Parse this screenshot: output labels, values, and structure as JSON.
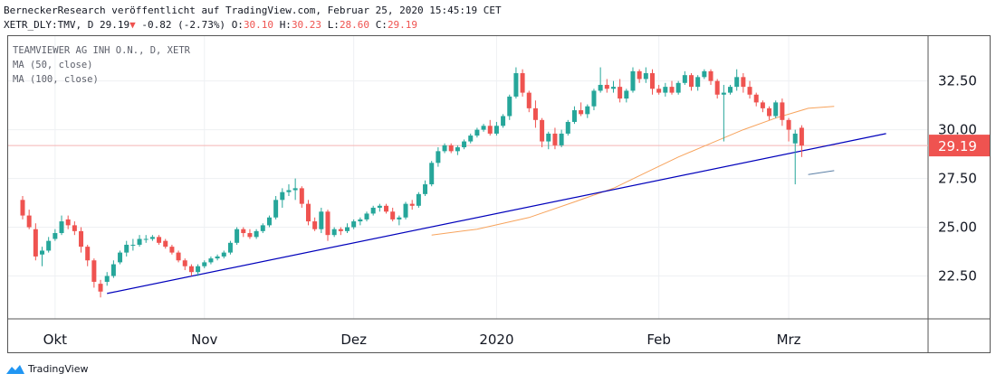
{
  "header": {
    "line1": "BerneckerResearch veröffentlicht auf TradingView.com, Februar 25, 2020 15:45:19 CET",
    "symbol": "XETR_DLY:TMV, D",
    "last": "29.19",
    "change": "-0.82 (-2.73%)",
    "o_label": "O:",
    "o": "30.10",
    "h_label": "H:",
    "h": "30.23",
    "l_label": "L:",
    "l": "28.60",
    "c_label": "C:",
    "c": "29.19"
  },
  "legend": {
    "title": "TEAMVIEWER AG INH O.N., D, XETR",
    "ma50": "MA (50, close)",
    "ma100": "MA (100, close)"
  },
  "brand": {
    "name": "TradingView"
  },
  "colors": {
    "up": "#26a69a",
    "down": "#ef5350",
    "ma50": "#f7a35c",
    "ma100": "#5b7fa6",
    "trendline": "#0000bb",
    "price_line": "#f5b5b3"
  },
  "chart_data": {
    "type": "candlestick",
    "ylim": [
      20.3,
      34.8
    ],
    "y_ticks": [
      22.5,
      25.0,
      27.5,
      30.0,
      32.5
    ],
    "y_tick_labels": [
      "22.50",
      "25.00",
      "27.50",
      "30.00",
      "32.50"
    ],
    "x_ticks": [
      {
        "i": 5,
        "label": "Okt"
      },
      {
        "i": 28,
        "label": "Nov"
      },
      {
        "i": 51,
        "label": "Dez"
      },
      {
        "i": 73,
        "label": "2020"
      },
      {
        "i": 98,
        "label": "Feb"
      },
      {
        "i": 118,
        "label": "Mrz"
      }
    ],
    "last_price_label": "29.19",
    "last_price": 29.19,
    "candles": [
      [
        26.4,
        26.6,
        25.4,
        25.6
      ],
      [
        25.6,
        25.9,
        24.9,
        25.0
      ],
      [
        24.9,
        25.2,
        23.3,
        23.5
      ],
      [
        23.6,
        24.0,
        23.0,
        23.8
      ],
      [
        23.8,
        24.5,
        23.7,
        24.3
      ],
      [
        24.4,
        24.9,
        24.3,
        24.7
      ],
      [
        24.7,
        25.6,
        24.6,
        25.3
      ],
      [
        25.4,
        25.6,
        24.9,
        25.1
      ],
      [
        25.1,
        25.3,
        24.6,
        24.8
      ],
      [
        24.8,
        25.0,
        23.7,
        24.0
      ],
      [
        24.0,
        24.1,
        23.0,
        23.3
      ],
      [
        23.3,
        23.4,
        21.9,
        22.2
      ],
      [
        22.1,
        22.3,
        21.4,
        21.7
      ],
      [
        22.2,
        22.7,
        22.0,
        22.5
      ],
      [
        22.5,
        23.3,
        22.4,
        23.1
      ],
      [
        23.2,
        23.8,
        23.1,
        23.7
      ],
      [
        23.7,
        24.3,
        23.5,
        24.1
      ],
      [
        24.1,
        24.4,
        23.8,
        24.1
      ],
      [
        24.1,
        24.6,
        24.0,
        24.4
      ],
      [
        24.4,
        24.6,
        24.2,
        24.4
      ],
      [
        24.4,
        24.6,
        24.3,
        24.5
      ],
      [
        24.5,
        24.6,
        24.1,
        24.2
      ],
      [
        24.3,
        24.4,
        23.9,
        24.0
      ],
      [
        24.0,
        24.1,
        23.6,
        23.7
      ],
      [
        23.7,
        23.8,
        23.2,
        23.3
      ],
      [
        23.3,
        23.4,
        22.8,
        23.0
      ],
      [
        23.0,
        23.1,
        22.5,
        22.7
      ],
      [
        22.7,
        23.1,
        22.5,
        23.0
      ],
      [
        23.0,
        23.3,
        22.9,
        23.2
      ],
      [
        23.2,
        23.5,
        23.1,
        23.4
      ],
      [
        23.4,
        23.6,
        23.3,
        23.5
      ],
      [
        23.5,
        23.8,
        23.4,
        23.7
      ],
      [
        23.7,
        24.3,
        23.6,
        24.2
      ],
      [
        24.2,
        25.0,
        24.1,
        24.9
      ],
      [
        24.9,
        25.0,
        24.5,
        24.7
      ],
      [
        24.7,
        24.9,
        24.4,
        24.5
      ],
      [
        24.5,
        24.9,
        24.4,
        24.8
      ],
      [
        24.8,
        25.2,
        24.7,
        25.1
      ],
      [
        25.1,
        25.6,
        25.0,
        25.5
      ],
      [
        25.5,
        26.6,
        25.4,
        26.4
      ],
      [
        26.4,
        27.0,
        26.0,
        26.8
      ],
      [
        26.8,
        27.2,
        26.6,
        26.9
      ],
      [
        26.9,
        27.5,
        26.4,
        27.0
      ],
      [
        27.0,
        27.1,
        26.0,
        26.2
      ],
      [
        26.2,
        26.4,
        25.1,
        25.3
      ],
      [
        25.3,
        25.5,
        24.8,
        24.9
      ],
      [
        24.9,
        26.0,
        24.7,
        25.8
      ],
      [
        25.8,
        25.9,
        24.3,
        24.6
      ],
      [
        24.6,
        25.0,
        24.5,
        24.9
      ],
      [
        24.9,
        25.0,
        24.6,
        24.8
      ],
      [
        24.8,
        25.2,
        24.7,
        25.0
      ],
      [
        25.0,
        25.4,
        24.9,
        25.3
      ],
      [
        25.3,
        25.5,
        25.1,
        25.4
      ],
      [
        25.4,
        25.8,
        25.3,
        25.7
      ],
      [
        25.7,
        26.1,
        25.6,
        26.0
      ],
      [
        26.0,
        26.2,
        25.8,
        26.1
      ],
      [
        26.1,
        26.2,
        25.7,
        25.8
      ],
      [
        25.8,
        26.0,
        25.3,
        25.4
      ],
      [
        25.4,
        25.6,
        25.1,
        25.5
      ],
      [
        25.5,
        26.3,
        25.4,
        26.2
      ],
      [
        26.2,
        26.4,
        25.9,
        26.1
      ],
      [
        26.1,
        26.8,
        26.0,
        26.7
      ],
      [
        26.7,
        27.4,
        26.6,
        27.2
      ],
      [
        27.2,
        28.4,
        27.1,
        28.3
      ],
      [
        28.3,
        29.1,
        28.1,
        28.9
      ],
      [
        28.9,
        29.3,
        28.8,
        29.2
      ],
      [
        29.2,
        29.3,
        28.8,
        28.9
      ],
      [
        28.9,
        29.2,
        28.7,
        29.1
      ],
      [
        29.1,
        29.5,
        29.0,
        29.4
      ],
      [
        29.4,
        29.8,
        29.3,
        29.7
      ],
      [
        29.7,
        30.1,
        29.6,
        30.0
      ],
      [
        30.0,
        30.3,
        29.9,
        30.2
      ],
      [
        30.2,
        30.5,
        29.7,
        29.8
      ],
      [
        29.8,
        30.4,
        29.7,
        30.2
      ],
      [
        30.2,
        30.8,
        30.1,
        30.7
      ],
      [
        30.7,
        31.8,
        30.5,
        31.7
      ],
      [
        31.7,
        33.2,
        31.6,
        32.9
      ],
      [
        32.9,
        33.1,
        31.7,
        31.9
      ],
      [
        31.9,
        32.0,
        30.9,
        31.1
      ],
      [
        31.1,
        31.5,
        30.1,
        30.5
      ],
      [
        30.5,
        30.6,
        29.1,
        29.4
      ],
      [
        29.4,
        29.9,
        29.0,
        29.8
      ],
      [
        29.8,
        30.1,
        29.0,
        29.2
      ],
      [
        29.2,
        30.0,
        29.1,
        29.8
      ],
      [
        29.8,
        30.5,
        29.7,
        30.4
      ],
      [
        30.4,
        31.2,
        30.3,
        31.0
      ],
      [
        31.0,
        31.4,
        30.7,
        30.8
      ],
      [
        30.8,
        31.3,
        30.6,
        31.2
      ],
      [
        31.2,
        32.1,
        31.0,
        32.0
      ],
      [
        32.0,
        33.2,
        31.9,
        32.3
      ],
      [
        32.3,
        32.6,
        31.9,
        32.1
      ],
      [
        32.1,
        32.5,
        31.9,
        32.2
      ],
      [
        32.2,
        32.6,
        31.4,
        31.6
      ],
      [
        31.6,
        32.1,
        31.4,
        32.0
      ],
      [
        32.0,
        33.2,
        31.9,
        33.0
      ],
      [
        33.0,
        33.1,
        32.4,
        32.6
      ],
      [
        32.6,
        33.2,
        32.4,
        32.9
      ],
      [
        32.9,
        33.1,
        31.8,
        32.1
      ],
      [
        32.1,
        32.3,
        31.8,
        31.9
      ],
      [
        31.9,
        32.4,
        31.7,
        32.2
      ],
      [
        32.2,
        32.5,
        31.8,
        31.9
      ],
      [
        31.9,
        32.5,
        31.8,
        32.4
      ],
      [
        32.4,
        33.0,
        32.3,
        32.8
      ],
      [
        32.8,
        32.9,
        32.0,
        32.2
      ],
      [
        32.2,
        32.8,
        32.0,
        32.7
      ],
      [
        32.7,
        33.1,
        32.6,
        33.0
      ],
      [
        33.0,
        33.1,
        32.3,
        32.5
      ],
      [
        32.5,
        32.6,
        31.6,
        31.8
      ],
      [
        31.8,
        32.3,
        29.4,
        31.9
      ],
      [
        31.9,
        32.3,
        31.8,
        32.2
      ],
      [
        32.2,
        33.1,
        32.0,
        32.7
      ],
      [
        32.7,
        32.9,
        31.9,
        32.2
      ],
      [
        32.2,
        32.5,
        31.6,
        31.8
      ],
      [
        31.8,
        31.9,
        31.2,
        31.4
      ],
      [
        31.4,
        31.5,
        30.9,
        31.1
      ],
      [
        31.1,
        31.2,
        30.5,
        30.7
      ],
      [
        30.7,
        31.5,
        30.6,
        31.4
      ],
      [
        31.4,
        31.6,
        30.2,
        30.5
      ],
      [
        30.5,
        30.6,
        29.4,
        30.0
      ],
      [
        29.3,
        30.0,
        27.2,
        29.8
      ],
      [
        30.1,
        30.23,
        28.6,
        29.19
      ]
    ],
    "series": [
      {
        "name": "MA (50, close)",
        "points": [
          [
            63,
            24.6
          ],
          [
            70,
            24.9
          ],
          [
            78,
            25.5
          ],
          [
            85,
            26.3
          ],
          [
            91,
            27.0
          ],
          [
            96,
            27.8
          ],
          [
            101,
            28.6
          ],
          [
            106,
            29.3
          ],
          [
            111,
            30.0
          ],
          [
            116,
            30.6
          ],
          [
            121,
            31.1
          ],
          [
            125,
            31.2
          ]
        ]
      },
      {
        "name": "MA (100, close)",
        "points": [
          [
            121,
            27.7
          ],
          [
            125,
            27.9
          ]
        ]
      },
      {
        "name": "",
        "points": [
          [
            13,
            21.6
          ],
          [
            133,
            29.8
          ]
        ]
      }
    ]
  }
}
